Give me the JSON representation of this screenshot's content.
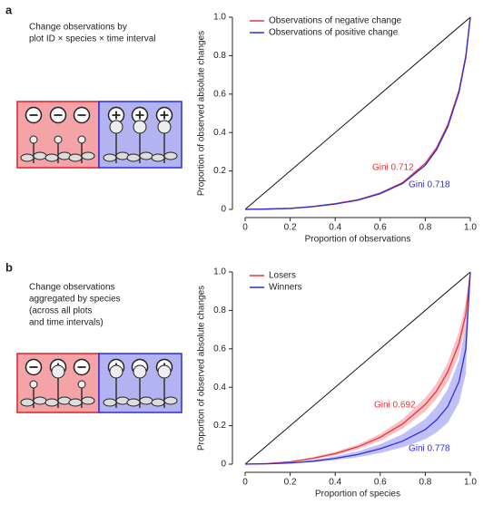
{
  "chart_data": [
    {
      "type": "line",
      "panel_label": "a",
      "description": [
        "Change observations by",
        "plot ID × species × time interval"
      ],
      "xlabel": "Proportion of observations",
      "ylabel": "Proportion of observed absolute changes",
      "xlim": [
        0,
        1
      ],
      "ylim": [
        0,
        1
      ],
      "xticks": [
        0,
        0.2,
        0.4,
        0.6,
        0.8,
        {
          "value": 1,
          "label": "1.0"
        }
      ],
      "yticks": [
        0,
        0.2,
        0.4,
        0.6,
        0.8,
        {
          "value": 1,
          "label": "1.0"
        }
      ],
      "legend": "upper left",
      "x": [
        0,
        0.1,
        0.2,
        0.3,
        0.4,
        0.5,
        0.6,
        0.7,
        0.8,
        0.85,
        0.9,
        0.95,
        0.98,
        1
      ],
      "series": [
        {
          "name": "Observations of negative change",
          "color": "#e8333a",
          "values": [
            0,
            0.002,
            0.006,
            0.015,
            0.03,
            0.05,
            0.085,
            0.14,
            0.24,
            0.32,
            0.44,
            0.62,
            0.8,
            1
          ]
        },
        {
          "name": "Observations of positive change",
          "color": "#2d2de0",
          "values": [
            0,
            0.002,
            0.005,
            0.014,
            0.028,
            0.048,
            0.082,
            0.135,
            0.23,
            0.31,
            0.43,
            0.61,
            0.79,
            1
          ]
        }
      ],
      "annotations": [
        {
          "text": "Gini 0.712",
          "color": "#e8333a"
        },
        {
          "text": "Gini 0.718",
          "color": "#2d2de0"
        }
      ]
    },
    {
      "type": "line",
      "panel_label": "b",
      "description": [
        "Change observations",
        "aggregated by species",
        "(across all plots",
        "and time intervals)"
      ],
      "xlabel": "Proportion of species",
      "ylabel": "Proportion of observed absolute changes",
      "xlim": [
        0,
        1
      ],
      "ylim": [
        0,
        1
      ],
      "xticks": [
        0,
        0.2,
        0.4,
        0.6,
        0.8,
        {
          "value": 1,
          "label": "1.0"
        }
      ],
      "yticks": [
        0,
        0.2,
        0.4,
        0.6,
        0.8,
        {
          "value": 1,
          "label": "1.0"
        }
      ],
      "legend": "upper left",
      "x": [
        0,
        0.1,
        0.2,
        0.3,
        0.4,
        0.5,
        0.6,
        0.7,
        0.8,
        0.85,
        0.9,
        0.95,
        0.98,
        1
      ],
      "series": [
        {
          "name": "Losers",
          "color": "#e8333a",
          "values": [
            0,
            0.003,
            0.012,
            0.03,
            0.055,
            0.09,
            0.14,
            0.21,
            0.31,
            0.38,
            0.48,
            0.63,
            0.78,
            1
          ],
          "lower": [
            0,
            0.002,
            0.009,
            0.024,
            0.046,
            0.078,
            0.122,
            0.185,
            0.275,
            0.34,
            0.43,
            0.57,
            0.72,
            1
          ],
          "upper": [
            0,
            0.004,
            0.015,
            0.036,
            0.064,
            0.102,
            0.158,
            0.235,
            0.345,
            0.42,
            0.53,
            0.69,
            0.84,
            1
          ]
        },
        {
          "name": "Winners",
          "color": "#2d2de0",
          "values": [
            0,
            0.002,
            0.006,
            0.015,
            0.03,
            0.05,
            0.08,
            0.12,
            0.18,
            0.23,
            0.3,
            0.43,
            0.6,
            1
          ],
          "lower": [
            0,
            0.001,
            0.004,
            0.01,
            0.021,
            0.036,
            0.058,
            0.088,
            0.13,
            0.165,
            0.215,
            0.32,
            0.47,
            1
          ],
          "upper": [
            0,
            0.003,
            0.009,
            0.021,
            0.04,
            0.066,
            0.104,
            0.156,
            0.235,
            0.3,
            0.39,
            0.54,
            0.72,
            1
          ]
        }
      ],
      "annotations": [
        {
          "text": "Gini 0.692",
          "color": "#e8333a"
        },
        {
          "text": "Gini 0.778",
          "color": "#2d2de0"
        }
      ]
    }
  ]
}
